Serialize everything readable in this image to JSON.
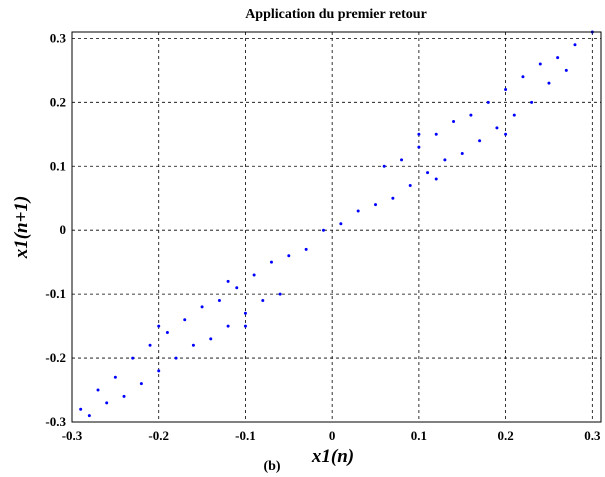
{
  "chart_data": {
    "type": "scatter",
    "title": "Application du premier retour",
    "xlabel": "x1(n)",
    "ylabel": "x1(n+1)",
    "panel_label": "(b)",
    "xlim": [
      -0.3,
      0.31
    ],
    "ylim": [
      -0.3,
      0.31
    ],
    "xticks": [
      -0.3,
      -0.2,
      -0.1,
      0,
      0.1,
      0.2,
      0.3
    ],
    "yticks": [
      -0.3,
      -0.2,
      -0.1,
      0,
      0.1,
      0.2,
      0.3
    ],
    "xtick_labels": [
      "-0.3",
      "-0.2",
      "-0.1",
      "0",
      "0.1",
      "0.2",
      "0.3"
    ],
    "ytick_labels": [
      "-0.3",
      "-0.2",
      "-0.1",
      "0",
      "0.1",
      "0.2",
      "0.3"
    ],
    "grid": true,
    "marker": "dot",
    "series_color": "#0000ff",
    "series": [
      {
        "points": [
          [
            -0.29,
            -0.28
          ],
          [
            -0.28,
            -0.29
          ],
          [
            -0.27,
            -0.25
          ],
          [
            -0.26,
            -0.27
          ],
          [
            -0.25,
            -0.23
          ],
          [
            -0.24,
            -0.26
          ],
          [
            -0.23,
            -0.2
          ],
          [
            -0.22,
            -0.24
          ],
          [
            -0.21,
            -0.18
          ],
          [
            -0.2,
            -0.22
          ],
          [
            -0.19,
            -0.16
          ],
          [
            -0.18,
            -0.2
          ],
          [
            -0.17,
            -0.14
          ],
          [
            -0.16,
            -0.18
          ],
          [
            -0.15,
            -0.12
          ],
          [
            -0.14,
            -0.17
          ],
          [
            -0.13,
            -0.11
          ],
          [
            -0.12,
            -0.15
          ],
          [
            -0.11,
            -0.09
          ],
          [
            -0.1,
            -0.13
          ],
          [
            -0.09,
            -0.07
          ],
          [
            -0.08,
            -0.11
          ],
          [
            -0.07,
            -0.05
          ],
          [
            -0.06,
            -0.1
          ],
          [
            0.06,
            0.1
          ],
          [
            0.07,
            0.05
          ],
          [
            0.08,
            0.11
          ],
          [
            0.09,
            0.07
          ],
          [
            0.1,
            0.13
          ],
          [
            0.11,
            0.09
          ],
          [
            0.12,
            0.15
          ],
          [
            0.13,
            0.11
          ],
          [
            0.14,
            0.17
          ],
          [
            0.15,
            0.12
          ],
          [
            0.16,
            0.18
          ],
          [
            0.17,
            0.14
          ],
          [
            0.18,
            0.2
          ],
          [
            0.19,
            0.16
          ],
          [
            0.2,
            0.22
          ],
          [
            0.21,
            0.18
          ],
          [
            0.22,
            0.24
          ],
          [
            0.23,
            0.2
          ],
          [
            0.24,
            0.26
          ],
          [
            0.25,
            0.23
          ],
          [
            0.26,
            0.27
          ],
          [
            0.27,
            0.25
          ],
          [
            0.28,
            0.29
          ],
          [
            0.3,
            0.31
          ],
          [
            -0.05,
            -0.04
          ],
          [
            -0.03,
            -0.03
          ],
          [
            -0.01,
            0.0
          ],
          [
            0.01,
            0.01
          ],
          [
            0.03,
            0.03
          ],
          [
            0.05,
            0.04
          ],
          [
            -0.1,
            -0.15
          ],
          [
            -0.12,
            -0.08
          ],
          [
            0.1,
            0.15
          ],
          [
            0.12,
            0.08
          ],
          [
            -0.2,
            -0.15
          ],
          [
            0.2,
            0.15
          ]
        ]
      }
    ]
  }
}
